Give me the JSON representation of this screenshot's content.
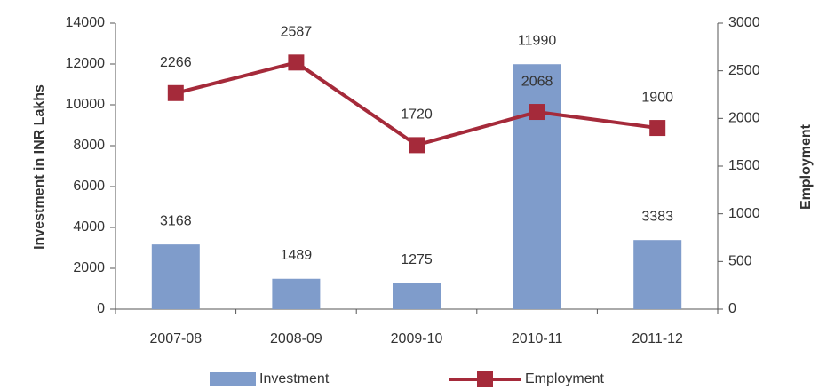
{
  "chart_data": {
    "type": "bar",
    "categories": [
      "2007-08",
      "2008-09",
      "2009-10",
      "2010-11",
      "2011-12"
    ],
    "series": [
      {
        "name": "Investment",
        "type": "bar",
        "color": "#7f9ccb",
        "values": [
          3168,
          1489,
          1275,
          11990,
          3383
        ]
      },
      {
        "name": "Employment",
        "type": "line",
        "color": "#a52a3a",
        "axis": "y2",
        "values": [
          2266,
          2587,
          1720,
          2068,
          1900
        ]
      }
    ],
    "ylabel": "Investment in INR Lakhs",
    "y2label": "Employment",
    "ylim": [
      0,
      14000
    ],
    "yticks": [
      0,
      2000,
      4000,
      6000,
      8000,
      10000,
      12000,
      14000
    ],
    "y2lim": [
      0,
      3000
    ],
    "y2ticks": [
      0,
      500,
      1000,
      1500,
      2000,
      2500,
      3000
    ],
    "grid": false,
    "legend": "bottom"
  }
}
